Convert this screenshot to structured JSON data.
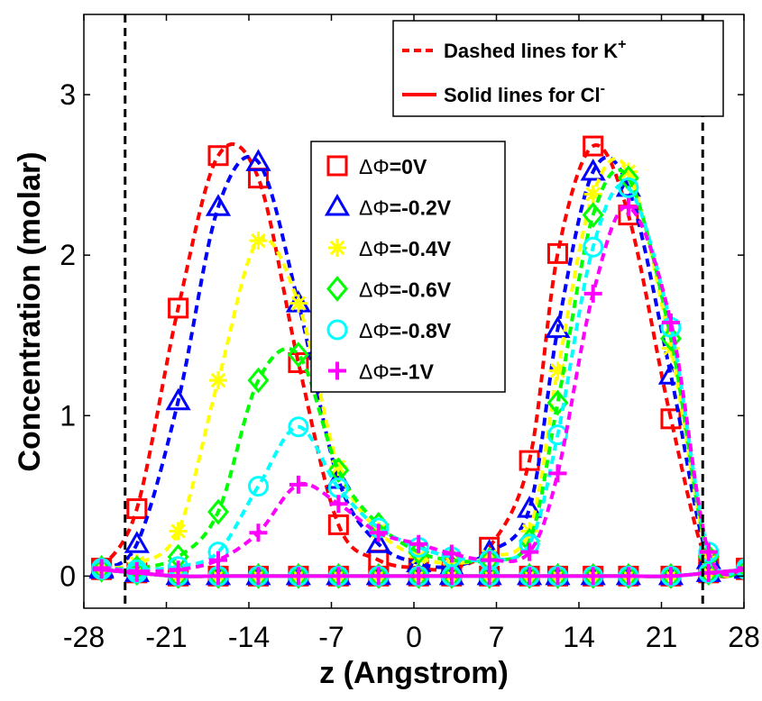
{
  "chart_data": {
    "type": "line",
    "title": "",
    "xlabel": "z (Angstrom)",
    "ylabel": "Concentration (molar)",
    "xlim": [
      -28,
      28
    ],
    "ylim": [
      -0.2,
      3.5
    ],
    "xticks": [
      -28,
      -21,
      -14,
      -7,
      0,
      7,
      14,
      21,
      28
    ],
    "yticks": [
      0,
      1,
      2,
      3
    ],
    "xtick_labels": [
      "-28",
      "-21",
      "-14",
      "-7",
      "0",
      "7",
      "14",
      "21",
      "28"
    ],
    "ytick_labels": [
      "0",
      "1",
      "2",
      "3"
    ],
    "grid": false,
    "boundary_lines_z": [
      -24.5,
      24.5
    ],
    "line_style_note": {
      "dashed_label": "Dashed lines for K",
      "dashed_sup": "+",
      "solid_label": "Solid lines for Cl",
      "solid_sup": "-"
    },
    "marker_x": [
      -26.5,
      -23.5,
      -20,
      -16.6,
      -13.2,
      -9.8,
      -6.4,
      -3,
      0.4,
      3.2,
      6.4,
      9.8,
      12.2,
      15.2,
      18.2,
      21.8,
      25,
      28.2
    ],
    "series": [
      {
        "name": "ΔΦ=0V",
        "label_prefix": "ΔΦ",
        "label_value": "=0V",
        "color": "#ff0000",
        "marker": "square",
        "k_values": [
          0.05,
          0.42,
          1.67,
          2.62,
          2.48,
          1.33,
          0.32,
          0.1,
          0.05,
          0.05,
          0.18,
          0.72,
          2.01,
          2.68,
          2.25,
          0.98,
          0.07,
          0.05
        ],
        "cl_values": [
          0.04,
          0.02,
          0.0,
          0.0,
          0.0,
          0.0,
          0.0,
          0.0,
          0.0,
          0.0,
          0.0,
          0.0,
          0.0,
          0.0,
          0.0,
          0.0,
          0.02,
          0.04
        ]
      },
      {
        "name": "ΔΦ=-0.2V",
        "label_prefix": "ΔΦ",
        "label_value": "=-0.2V",
        "color": "#0000ff",
        "marker": "triangle",
        "k_values": [
          0.05,
          0.2,
          1.09,
          2.3,
          2.58,
          1.7,
          0.6,
          0.2,
          0.08,
          0.06,
          0.15,
          0.42,
          1.54,
          2.52,
          2.42,
          1.25,
          0.1,
          0.05
        ],
        "cl_values": [
          0.04,
          0.02,
          0.0,
          0.0,
          0.0,
          0.0,
          0.0,
          0.0,
          0.0,
          0.0,
          0.0,
          0.0,
          0.0,
          0.0,
          0.0,
          0.0,
          0.02,
          0.04
        ]
      },
      {
        "name": "ΔΦ=-0.4V",
        "label_prefix": "ΔΦ",
        "label_value": "=-0.4V",
        "color": "#ffff00",
        "marker": "asterisk",
        "k_values": [
          0.05,
          0.08,
          0.28,
          1.22,
          2.09,
          1.7,
          0.68,
          0.28,
          0.12,
          0.08,
          0.12,
          0.28,
          1.28,
          2.38,
          2.52,
          1.42,
          0.12,
          0.05
        ],
        "cl_values": [
          0.04,
          0.02,
          0.0,
          0.0,
          0.0,
          0.0,
          0.0,
          0.0,
          0.0,
          0.0,
          0.0,
          0.0,
          0.0,
          0.0,
          0.0,
          0.0,
          0.02,
          0.04
        ]
      },
      {
        "name": "ΔΦ=-0.6V",
        "label_prefix": "ΔΦ",
        "label_value": "=-0.6V",
        "color": "#00ff00",
        "marker": "diamond",
        "k_values": [
          0.05,
          0.05,
          0.12,
          0.4,
          1.22,
          1.38,
          0.66,
          0.32,
          0.15,
          0.1,
          0.1,
          0.22,
          1.08,
          2.25,
          2.48,
          1.48,
          0.12,
          0.05
        ],
        "cl_values": [
          0.04,
          0.02,
          0.0,
          0.0,
          0.0,
          0.0,
          0.0,
          0.0,
          0.0,
          0.0,
          0.0,
          0.0,
          0.0,
          0.0,
          0.0,
          0.0,
          0.02,
          0.04
        ]
      },
      {
        "name": "ΔΦ=-0.8V",
        "label_prefix": "ΔΦ",
        "label_value": "=-0.8V",
        "color": "#00ffff",
        "marker": "circle",
        "k_values": [
          0.05,
          0.04,
          0.06,
          0.15,
          0.56,
          0.93,
          0.55,
          0.3,
          0.18,
          0.12,
          0.1,
          0.2,
          0.88,
          2.05,
          2.42,
          1.55,
          0.15,
          0.05
        ],
        "cl_values": [
          0.04,
          0.02,
          0.0,
          0.0,
          0.0,
          0.0,
          0.0,
          0.0,
          0.0,
          0.0,
          0.0,
          0.0,
          0.0,
          0.0,
          0.0,
          0.0,
          0.02,
          0.04
        ]
      },
      {
        "name": "ΔΦ=-1V",
        "label_prefix": "ΔΦ",
        "label_value": "=-1V",
        "color": "#ff00ff",
        "marker": "plus",
        "k_values": [
          0.05,
          0.03,
          0.04,
          0.1,
          0.27,
          0.57,
          0.45,
          0.27,
          0.2,
          0.14,
          0.1,
          0.15,
          0.64,
          1.76,
          2.3,
          1.58,
          0.15,
          0.05
        ],
        "cl_values": [
          0.04,
          0.02,
          0.0,
          0.0,
          0.0,
          0.0,
          0.0,
          0.0,
          0.0,
          0.0,
          0.0,
          0.0,
          0.0,
          0.0,
          0.0,
          0.0,
          0.02,
          0.04
        ]
      }
    ]
  }
}
